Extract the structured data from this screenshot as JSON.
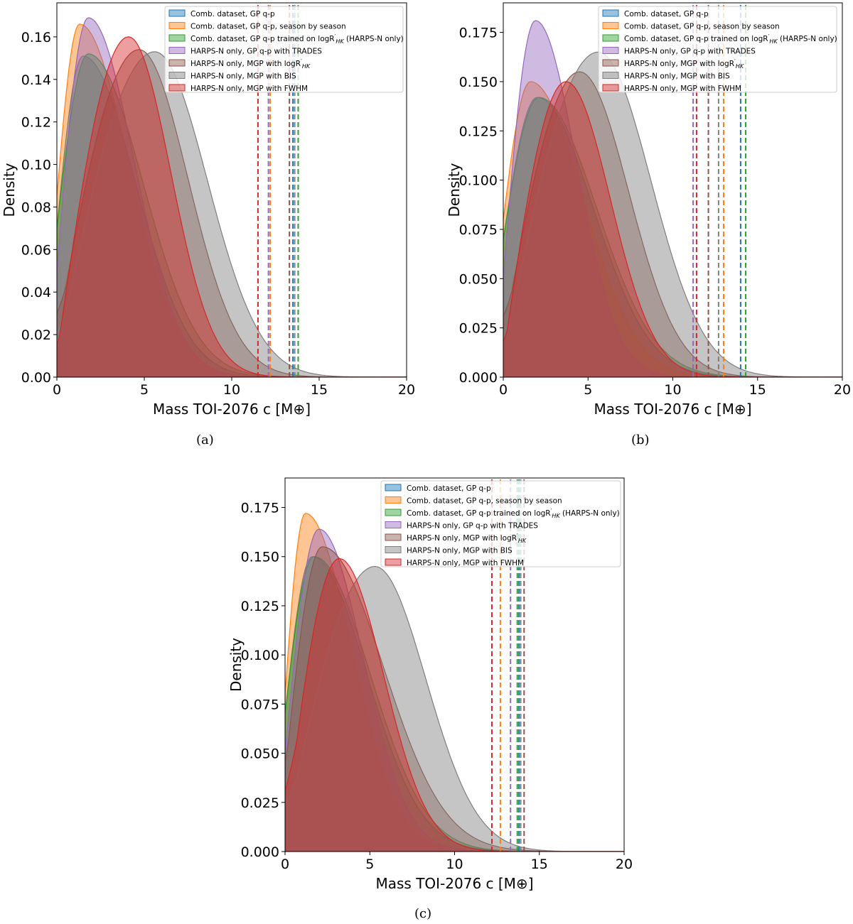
{
  "figure": {
    "panel_labels": [
      "(a)",
      "(b)",
      "(c)"
    ]
  },
  "legend_labels": [
    "Comb. dataset, GP q-p",
    "Comb. dataset, GP q-p, season by season",
    "Comb. dataset, GP q-p trained on logR'HK (HARPS-N only)",
    "HARPS-N only, GP q-p with TRADES",
    "HARPS-N only, MGP with logR'HK",
    "HARPS-N only, MGP with BIS",
    "HARPS-N only, MGP with FWHM"
  ],
  "series_colors": [
    "#1f77b4",
    "#ff7f0e",
    "#2ca02c",
    "#9467bd",
    "#8c564b",
    "#7f7f7f",
    "#d62728"
  ],
  "chart_data": [
    {
      "panel": "(a)",
      "type": "area",
      "title": "",
      "xlabel": "Mass TOI-2076 c [M⊕]",
      "ylabel": "Density",
      "xlim": [
        0,
        20
      ],
      "ylim": [
        0,
        0.176
      ],
      "xticks": [
        0,
        5,
        10,
        15,
        20
      ],
      "yticks": [
        0.0,
        0.02,
        0.04,
        0.06,
        0.08,
        0.1,
        0.12,
        0.14,
        0.16
      ],
      "ytick_labels": [
        "0.00",
        "0.02",
        "0.04",
        "0.06",
        "0.08",
        "0.10",
        "0.12",
        "0.14",
        "0.16"
      ],
      "grid": false,
      "legend": "top-right",
      "series": [
        {
          "name": "Comb. dataset, GP q-p",
          "peak_x": 1.5,
          "peak_y": 0.151,
          "width_left": 1.1,
          "width_right": 3.0,
          "start_y": 0.07,
          "upper_95": 13.5
        },
        {
          "name": "Comb. dataset, GP q-p, season by season",
          "peak_x": 1.3,
          "peak_y": 0.166,
          "width_left": 0.8,
          "width_right": 2.8,
          "start_y": 0.085,
          "upper_95": 12.2
        },
        {
          "name": "Comb. dataset, GP q-p trained on logR'HK (HARPS-N only)",
          "peak_x": 1.8,
          "peak_y": 0.152,
          "width_left": 1.2,
          "width_right": 3.1,
          "start_y": 0.07,
          "upper_95": 13.8
        },
        {
          "name": "HARPS-N only, GP q-p with TRADES",
          "peak_x": 1.8,
          "peak_y": 0.169,
          "width_left": 1.0,
          "width_right": 2.6,
          "start_y": 0.05,
          "upper_95": 12.1
        },
        {
          "name": "HARPS-N only, MGP with logR'HK",
          "peak_x": 4.7,
          "peak_y": 0.154,
          "width_left": 2.6,
          "width_right": 2.8,
          "start_y": 0.02,
          "upper_95": 13.3
        },
        {
          "name": "HARPS-N only, MGP with BIS",
          "peak_x": 5.6,
          "peak_y": 0.153,
          "width_left": 2.8,
          "width_right": 3.0,
          "start_y": 0.01,
          "upper_95": 13.6
        },
        {
          "name": "HARPS-N only, MGP with FWHM",
          "peak_x": 4.1,
          "peak_y": 0.16,
          "width_left": 1.9,
          "width_right": 2.4,
          "start_y": 0.01,
          "upper_95": 11.5
        }
      ]
    },
    {
      "panel": "(b)",
      "type": "area",
      "title": "",
      "xlabel": "Mass TOI-2076 c [M⊕]",
      "ylabel": "Density",
      "xlim": [
        0,
        20
      ],
      "ylim": [
        0,
        0.19
      ],
      "xticks": [
        0,
        5,
        10,
        15,
        20
      ],
      "yticks": [
        0.0,
        0.025,
        0.05,
        0.075,
        0.1,
        0.125,
        0.15,
        0.175
      ],
      "ytick_labels": [
        "0.000",
        "0.025",
        "0.050",
        "0.075",
        "0.100",
        "0.125",
        "0.150",
        "0.175"
      ],
      "grid": false,
      "legend": "top-right",
      "series": [
        {
          "name": "Comb. dataset, GP q-p",
          "peak_x": 2.0,
          "peak_y": 0.142,
          "width_left": 1.5,
          "width_right": 3.3,
          "start_y": 0.07,
          "upper_95": 14.0
        },
        {
          "name": "Comb. dataset, GP q-p, season by season",
          "peak_x": 1.6,
          "peak_y": 0.15,
          "width_left": 1.1,
          "width_right": 3.1,
          "start_y": 0.08,
          "upper_95": 13.0
        },
        {
          "name": "Comb. dataset, GP q-p trained on logR'HK (HARPS-N only)",
          "peak_x": 2.1,
          "peak_y": 0.142,
          "width_left": 1.5,
          "width_right": 3.4,
          "start_y": 0.07,
          "upper_95": 14.3
        },
        {
          "name": "HARPS-N only, GP q-p with TRADES",
          "peak_x": 1.9,
          "peak_y": 0.181,
          "width_left": 0.9,
          "width_right": 2.4,
          "start_y": 0.05,
          "upper_95": 11.2
        },
        {
          "name": "HARPS-N only, MGP with logR'HK",
          "peak_x": 4.5,
          "peak_y": 0.155,
          "width_left": 2.5,
          "width_right": 2.9,
          "start_y": 0.02,
          "upper_95": 12.1
        },
        {
          "name": "HARPS-N only, MGP with BIS",
          "peak_x": 5.6,
          "peak_y": 0.165,
          "width_left": 2.8,
          "width_right": 3.1,
          "start_y": 0.01,
          "upper_95": 12.7
        },
        {
          "name": "HARPS-N only, MGP with FWHM",
          "peak_x": 3.7,
          "peak_y": 0.15,
          "width_left": 1.8,
          "width_right": 2.6,
          "start_y": 0.01,
          "upper_95": 11.4
        }
      ]
    },
    {
      "panel": "(c)",
      "type": "area",
      "title": "",
      "xlabel": "Mass TOI-2076 c [M⊕]",
      "ylabel": "Density",
      "xlim": [
        0,
        20
      ],
      "ylim": [
        0,
        0.19
      ],
      "xticks": [
        0,
        5,
        10,
        15,
        20
      ],
      "yticks": [
        0.0,
        0.025,
        0.05,
        0.075,
        0.1,
        0.125,
        0.15,
        0.175
      ],
      "ytick_labels": [
        "0.000",
        "0.025",
        "0.050",
        "0.075",
        "0.100",
        "0.125",
        "0.150",
        "0.175"
      ],
      "grid": false,
      "legend": "top-right",
      "series": [
        {
          "name": "Comb. dataset, GP q-p",
          "peak_x": 1.6,
          "peak_y": 0.15,
          "width_left": 1.1,
          "width_right": 3.2,
          "start_y": 0.07,
          "upper_95": 13.8
        },
        {
          "name": "Comb. dataset, GP q-p, season by season",
          "peak_x": 1.2,
          "peak_y": 0.172,
          "width_left": 0.8,
          "width_right": 2.7,
          "start_y": 0.08,
          "upper_95": 12.7
        },
        {
          "name": "Comb. dataset, GP q-p trained on logR'HK (HARPS-N only)",
          "peak_x": 1.7,
          "peak_y": 0.15,
          "width_left": 1.2,
          "width_right": 3.3,
          "start_y": 0.07,
          "upper_95": 13.7
        },
        {
          "name": "HARPS-N only, GP q-p with TRADES",
          "peak_x": 2.0,
          "peak_y": 0.164,
          "width_left": 1.0,
          "width_right": 2.6,
          "start_y": 0.05,
          "upper_95": 13.3
        },
        {
          "name": "HARPS-N only, MGP with logR'HK",
          "peak_x": 2.2,
          "peak_y": 0.155,
          "width_left": 1.4,
          "width_right": 3.6,
          "start_y": 0.04,
          "upper_95": 14.1
        },
        {
          "name": "HARPS-N only, MGP with BIS",
          "peak_x": 5.3,
          "peak_y": 0.145,
          "width_left": 2.8,
          "width_right": 3.0,
          "start_y": 0.01,
          "upper_95": 13.9
        },
        {
          "name": "HARPS-N only, MGP with FWHM",
          "peak_x": 3.2,
          "peak_y": 0.149,
          "width_left": 1.8,
          "width_right": 2.6,
          "start_y": 0.01,
          "upper_95": 12.2
        }
      ]
    }
  ]
}
